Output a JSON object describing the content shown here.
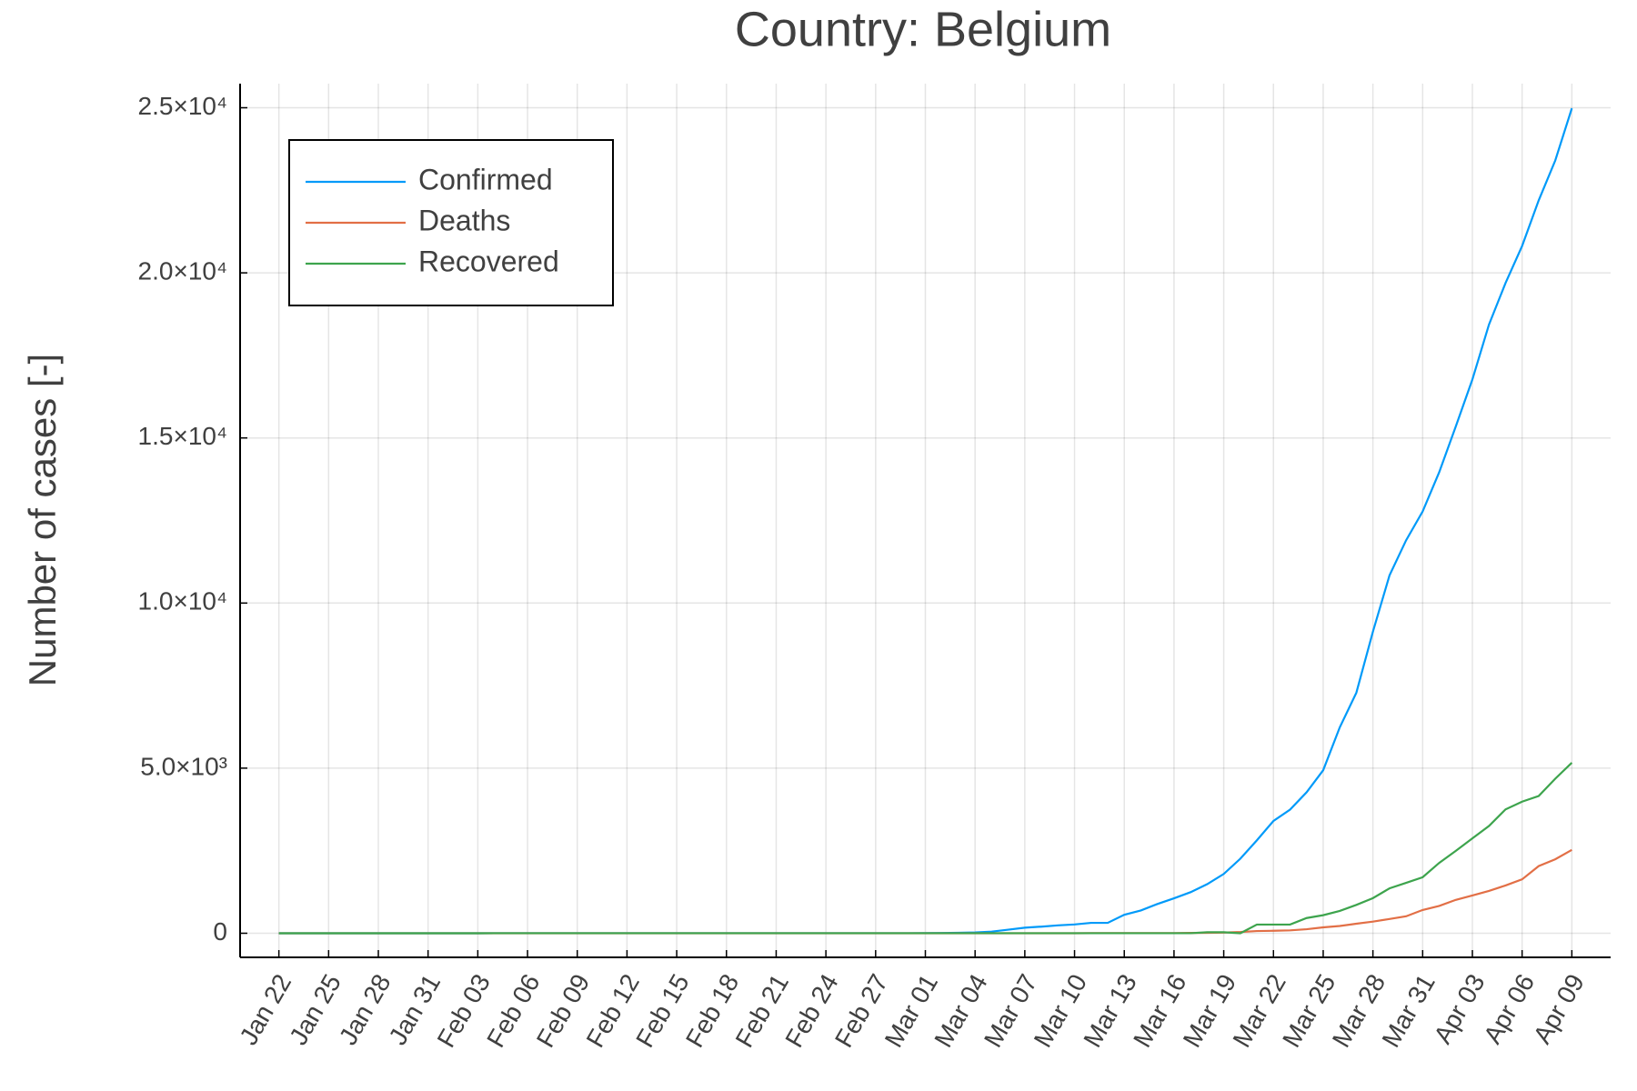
{
  "chart_data": {
    "type": "line",
    "title": "Country: Belgium",
    "y_label": "Number of cases [-]",
    "categories": [
      "Jan 22",
      null,
      null,
      "Jan 25",
      null,
      null,
      "Jan 28",
      null,
      null,
      "Jan 31",
      null,
      null,
      "Feb 03",
      null,
      null,
      "Feb 06",
      null,
      null,
      "Feb 09",
      null,
      null,
      "Feb 12",
      null,
      null,
      "Feb 15",
      null,
      null,
      "Feb 18",
      null,
      null,
      "Feb 21",
      null,
      null,
      "Feb 24",
      null,
      null,
      "Feb 27",
      null,
      null,
      "Mar 01",
      null,
      null,
      "Mar 04",
      null,
      null,
      "Mar 07",
      null,
      null,
      "Mar 10",
      null,
      null,
      "Mar 13",
      null,
      null,
      "Mar 16",
      null,
      null,
      "Mar 19",
      null,
      null,
      "Mar 22",
      null,
      null,
      "Mar 25",
      null,
      null,
      "Mar 28",
      null,
      null,
      "Mar 31",
      null,
      null,
      "Apr 03",
      null,
      null,
      "Apr 06",
      null,
      null,
      "Apr 09"
    ],
    "series": [
      {
        "name": "Confirmed",
        "color": "#009af9",
        "values": [
          0,
          0,
          0,
          0,
          0,
          0,
          0,
          0,
          0,
          0,
          0,
          0,
          0,
          1,
          1,
          1,
          1,
          1,
          1,
          1,
          1,
          1,
          1,
          1,
          1,
          1,
          1,
          1,
          1,
          1,
          1,
          1,
          1,
          1,
          1,
          1,
          1,
          1,
          1,
          2,
          8,
          13,
          23,
          50,
          109,
          169,
          200,
          239,
          267,
          314,
          314,
          559,
          689,
          886,
          1058,
          1243,
          1486,
          1795,
          2257,
          2815,
          3401,
          3743,
          4269,
          4937,
          6235,
          7284,
          9134,
          10836,
          11899,
          12775,
          13964,
          15348,
          16770,
          18431,
          19691,
          20814,
          22194,
          23403,
          24983
        ]
      },
      {
        "name": "Deaths",
        "color": "#e26f46",
        "values": [
          0,
          0,
          0,
          0,
          0,
          0,
          0,
          0,
          0,
          0,
          0,
          0,
          0,
          0,
          0,
          0,
          0,
          0,
          0,
          0,
          0,
          0,
          0,
          0,
          0,
          0,
          0,
          0,
          0,
          0,
          0,
          0,
          0,
          0,
          0,
          0,
          0,
          0,
          0,
          0,
          0,
          0,
          0,
          0,
          0,
          0,
          0,
          0,
          0,
          3,
          3,
          3,
          4,
          4,
          5,
          10,
          14,
          21,
          37,
          67,
          75,
          88,
          122,
          178,
          220,
          289,
          353,
          431,
          513,
          705,
          828,
          1011,
          1143,
          1283,
          1447,
          1632,
          2035,
          2240,
          2523
        ]
      },
      {
        "name": "Recovered",
        "color": "#3da44d",
        "values": [
          0,
          0,
          0,
          0,
          0,
          0,
          0,
          0,
          0,
          0,
          0,
          0,
          0,
          1,
          1,
          1,
          1,
          1,
          1,
          1,
          1,
          1,
          1,
          1,
          1,
          1,
          1,
          1,
          1,
          1,
          1,
          1,
          1,
          1,
          1,
          1,
          1,
          1,
          1,
          1,
          1,
          1,
          1,
          1,
          1,
          1,
          1,
          1,
          1,
          1,
          1,
          1,
          1,
          1,
          1,
          1,
          31,
          31,
          1,
          263,
          263,
          263,
          461,
          547,
          675,
          858,
          1063,
          1359,
          1527,
          1696,
          2132,
          2495,
          2872,
          3247,
          3751,
          3986,
          4157,
          4681,
          5164
        ]
      }
    ],
    "ylim": [
      -730,
      25730
    ],
    "yticks": [
      0,
      {
        "value": 5000,
        "label": "5.0×10³"
      },
      {
        "value": 10000,
        "label": "1.0×10⁴"
      },
      {
        "value": 15000,
        "label": "1.5×10⁴"
      },
      {
        "value": 20000,
        "label": "2.0×10⁴"
      },
      {
        "value": 25000,
        "label": "2.5×10⁴"
      }
    ],
    "grid": true,
    "legend": "top left"
  }
}
